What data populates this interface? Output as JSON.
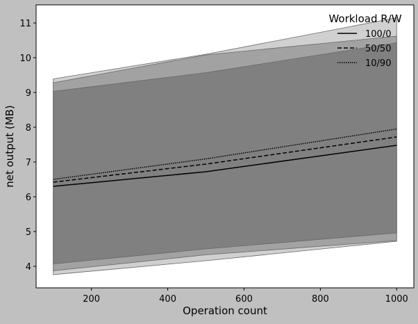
{
  "chart_data": {
    "type": "line",
    "title": "",
    "xlabel": "Operation count",
    "ylabel": "net output (MB)",
    "xlim": [
      55,
      1045
    ],
    "ylim": [
      3.38,
      11.52
    ],
    "xticks": [
      200,
      400,
      600,
      800,
      1000
    ],
    "yticks": [
      4,
      5,
      6,
      7,
      8,
      9,
      10,
      11
    ],
    "grid": false,
    "legend": {
      "title": "Workload R/W",
      "placement": "top-right"
    },
    "x": [
      100,
      500,
      1000
    ],
    "series": [
      {
        "name": "100/0",
        "line_style": "solid",
        "values": [
          6.3,
          6.72,
          7.48
        ],
        "band_lower": [
          4.07,
          4.5,
          4.96
        ],
        "band_upper": [
          9.03,
          9.57,
          10.43
        ],
        "band_color": "#808080"
      },
      {
        "name": "50/50",
        "line_style": "dashed",
        "values": [
          6.42,
          6.94,
          7.72
        ],
        "band_lower": [
          3.87,
          4.33,
          4.74
        ],
        "band_upper": [
          9.28,
          10.08,
          10.62
        ],
        "band_color": "#a2a2a2"
      },
      {
        "name": "10/90",
        "line_style": "dotted",
        "values": [
          6.5,
          7.09,
          7.95
        ],
        "band_lower": [
          3.76,
          4.16,
          4.72
        ],
        "band_upper": [
          9.39,
          10.1,
          11.15
        ],
        "band_color": "#d0d0d0"
      }
    ]
  }
}
